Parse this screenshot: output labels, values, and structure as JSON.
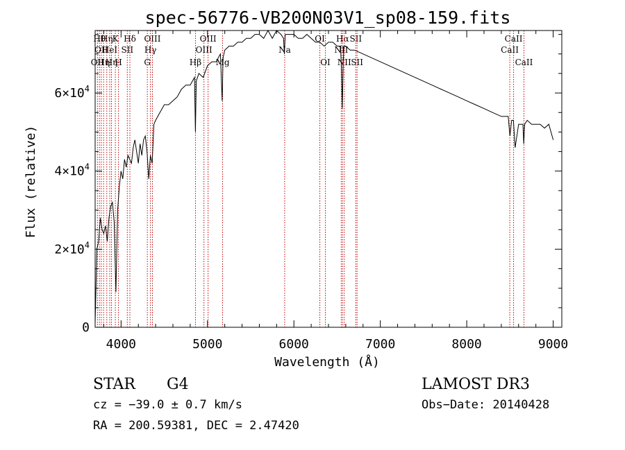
{
  "chart_data": {
    "type": "line",
    "title": "spec-56776-VB200N03V1_sp08-159.fits",
    "xlabel": "Wavelength (Å)",
    "ylabel": "Flux (relative)",
    "xlim": [
      3700,
      9100
    ],
    "ylim": [
      0,
      76000
    ],
    "x_ticks": [
      {
        "value": 4000,
        "label": "4000"
      },
      {
        "value": 5000,
        "label": "5000"
      },
      {
        "value": 6000,
        "label": "6000"
      },
      {
        "value": 7000,
        "label": "7000"
      },
      {
        "value": 8000,
        "label": "8000"
      },
      {
        "value": 9000,
        "label": "9000"
      }
    ],
    "y_ticks": [
      {
        "value": 0,
        "mant": "0",
        "exp": ""
      },
      {
        "value": 20000,
        "mant": "2×10",
        "exp": "4"
      },
      {
        "value": 40000,
        "mant": "4×10",
        "exp": "4"
      },
      {
        "value": 60000,
        "mant": "6×10",
        "exp": "4"
      }
    ],
    "series": [
      {
        "name": "spectrum",
        "x": [
          3700,
          3720,
          3740,
          3760,
          3780,
          3800,
          3820,
          3840,
          3860,
          3880,
          3900,
          3920,
          3940,
          3960,
          3980,
          4000,
          4020,
          4040,
          4060,
          4080,
          4100,
          4120,
          4140,
          4160,
          4180,
          4200,
          4220,
          4240,
          4260,
          4280,
          4300,
          4320,
          4340,
          4360,
          4380,
          4400,
          4450,
          4500,
          4550,
          4600,
          4650,
          4700,
          4750,
          4800,
          4850,
          4860,
          4870,
          4900,
          4950,
          5000,
          5050,
          5100,
          5150,
          5170,
          5180,
          5200,
          5250,
          5300,
          5350,
          5400,
          5450,
          5500,
          5550,
          5600,
          5650,
          5700,
          5750,
          5800,
          5850,
          5880,
          5890,
          5900,
          5950,
          6000,
          6050,
          6100,
          6150,
          6200,
          6250,
          6300,
          6350,
          6400,
          6450,
          6500,
          6540,
          6550,
          6560,
          6570,
          6580,
          6600,
          6650,
          6700,
          6800,
          6900,
          7000,
          7100,
          7200,
          7300,
          7400,
          7500,
          7600,
          7700,
          7800,
          7900,
          8000,
          8100,
          8200,
          8300,
          8400,
          8480,
          8500,
          8520,
          8540,
          8560,
          8600,
          8650,
          8660,
          8670,
          8700,
          8750,
          8800,
          8850,
          8900,
          8950,
          9000
        ],
        "y": [
          1000,
          20000,
          22000,
          28000,
          25000,
          24000,
          26000,
          22000,
          28000,
          31000,
          32000,
          27000,
          9000,
          30000,
          36000,
          40000,
          38000,
          43000,
          41000,
          44000,
          43000,
          42000,
          46000,
          48000,
          45000,
          42000,
          47000,
          44000,
          48000,
          49000,
          45000,
          38000,
          44000,
          42000,
          52000,
          53000,
          55000,
          57000,
          57000,
          58000,
          59000,
          61000,
          62000,
          62000,
          64000,
          50000,
          63000,
          65000,
          64000,
          67000,
          68000,
          68000,
          70000,
          58000,
          69000,
          71000,
          72000,
          72000,
          73000,
          73000,
          74000,
          74000,
          75000,
          75000,
          74000,
          76000,
          74000,
          76000,
          75000,
          74000,
          70000,
          75000,
          75000,
          75000,
          74000,
          74000,
          75000,
          74000,
          73000,
          73000,
          72000,
          73000,
          73000,
          72000,
          72000,
          66000,
          56000,
          68000,
          72000,
          72000,
          71000,
          71000,
          70000,
          69000,
          68000,
          67000,
          66000,
          65000,
          64000,
          63000,
          62000,
          61000,
          60000,
          59000,
          58000,
          57000,
          56000,
          55000,
          54000,
          54000,
          49000,
          53000,
          53000,
          46000,
          52000,
          52000,
          47000,
          52000,
          53000,
          52000,
          52000,
          52000,
          51000,
          52000,
          48000
        ]
      }
    ],
    "lines": [
      {
        "wl": 3727,
        "label": "OII",
        "row": 2
      },
      {
        "wl": 3750,
        "label": "Hθ",
        "row": 0
      },
      {
        "wl": 3771,
        "label": "OII",
        "row": 1
      },
      {
        "wl": 3798,
        "label": "Hη",
        "row": 2
      },
      {
        "wl": 3835,
        "label": "Hη",
        "row": 0
      },
      {
        "wl": 3869,
        "label": "HeI",
        "row": 1
      },
      {
        "wl": 3889,
        "label": "Hη",
        "row": 2
      },
      {
        "wl": 3934,
        "label": "K",
        "row": 0
      },
      {
        "wl": 3970,
        "label": "H",
        "row": 2
      },
      {
        "wl": 4072,
        "label": "SII",
        "row": 1
      },
      {
        "wl": 4102,
        "label": "Hδ",
        "row": 0
      },
      {
        "wl": 4304,
        "label": "G",
        "row": 2
      },
      {
        "wl": 4340,
        "label": "Hγ",
        "row": 1
      },
      {
        "wl": 4363,
        "label": "OIII",
        "row": 0
      },
      {
        "wl": 4861,
        "label": "Hβ",
        "row": 2
      },
      {
        "wl": 4959,
        "label": "OIII",
        "row": 1
      },
      {
        "wl": 5007,
        "label": "OIII",
        "row": 0
      },
      {
        "wl": 5175,
        "label": "Mg",
        "row": 2
      },
      {
        "wl": 5893,
        "label": "Na",
        "row": 1
      },
      {
        "wl": 6300,
        "label": "OI",
        "row": 0
      },
      {
        "wl": 6364,
        "label": "OI",
        "row": 2
      },
      {
        "wl": 6548,
        "label": "NII",
        "row": 1
      },
      {
        "wl": 6563,
        "label": "Hα",
        "row": 0
      },
      {
        "wl": 6583,
        "label": "NII",
        "row": 2
      },
      {
        "wl": 6716,
        "label": "SII",
        "row": 0
      },
      {
        "wl": 6731,
        "label": "SII",
        "row": 2
      },
      {
        "wl": 8498,
        "label": "CaII",
        "row": 1
      },
      {
        "wl": 8542,
        "label": "CaII",
        "row": 0
      },
      {
        "wl": 8662,
        "label": "CaII",
        "row": 2
      }
    ]
  },
  "footer": {
    "object_class": "STAR",
    "subclass": "G4",
    "survey": "LAMOST DR3",
    "redshift": "cz = −39.0 ± 0.7 km/s",
    "obs_date": "Obs−Date: 20140428",
    "coords": "RA = 200.59381, DEC =    2.47420"
  }
}
